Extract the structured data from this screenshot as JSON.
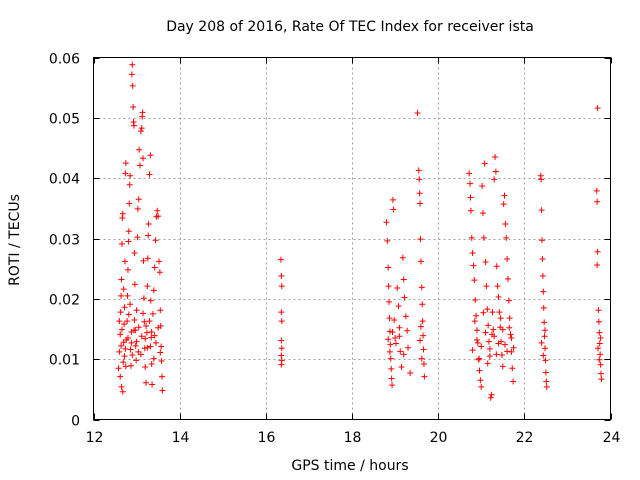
{
  "chart_data": {
    "type": "scatter",
    "title": "Day 208 of 2016, Rate Of TEC Index for receiver ista",
    "xlabel": "GPS time / hours",
    "ylabel": "ROTI / TECUs",
    "xlim": [
      12,
      24
    ],
    "ylim": [
      0,
      0.06
    ],
    "xticks": [
      12,
      14,
      16,
      18,
      20,
      22,
      24
    ],
    "xtick_labels": [
      "12",
      "14",
      "16",
      "18",
      "20",
      "22",
      "24"
    ],
    "yticks": [
      0,
      0.01,
      0.02,
      0.03,
      0.04,
      0.05,
      0.06
    ],
    "ytick_labels": [
      "0",
      "0.01",
      "0.02",
      "0.03",
      "0.04",
      "0.05",
      "0.06"
    ],
    "grid": true,
    "marker": "+",
    "series": [
      {
        "name": "ROTI",
        "color": "#ff0000",
        "points": [
          [
            12.58,
            0.0085
          ],
          [
            12.6,
            0.0112
          ],
          [
            12.62,
            0.0141
          ],
          [
            12.63,
            0.0178
          ],
          [
            12.64,
            0.0205
          ],
          [
            12.65,
            0.0232
          ],
          [
            12.66,
            0.0291
          ],
          [
            12.67,
            0.0334
          ],
          [
            12.68,
            0.0341
          ],
          [
            12.69,
            0.0095
          ],
          [
            12.7,
            0.0128
          ],
          [
            12.71,
            0.0158
          ],
          [
            12.72,
            0.0186
          ],
          [
            12.73,
            0.0262
          ],
          [
            12.74,
            0.0408
          ],
          [
            12.75,
            0.0425
          ],
          [
            12.62,
            0.0071
          ],
          [
            12.65,
            0.0054
          ],
          [
            12.68,
            0.0046
          ],
          [
            12.72,
            0.0105
          ],
          [
            12.76,
            0.0132
          ],
          [
            12.78,
            0.0163
          ],
          [
            12.79,
            0.0205
          ],
          [
            12.8,
            0.0248
          ],
          [
            12.81,
            0.0295
          ],
          [
            12.82,
            0.0312
          ],
          [
            12.83,
            0.0358
          ],
          [
            12.84,
            0.0389
          ],
          [
            12.85,
            0.0404
          ],
          [
            12.86,
            0.0116
          ],
          [
            12.87,
            0.0089
          ],
          [
            12.88,
            0.0145
          ],
          [
            12.89,
            0.0572
          ],
          [
            12.9,
            0.0588
          ],
          [
            12.91,
            0.0553
          ],
          [
            12.92,
            0.0518
          ],
          [
            12.93,
            0.0493
          ],
          [
            12.94,
            0.0487
          ],
          [
            12.95,
            0.0276
          ],
          [
            12.96,
            0.0224
          ],
          [
            12.97,
            0.0148
          ],
          [
            12.98,
            0.0122
          ],
          [
            12.99,
            0.0098
          ],
          [
            13.0,
            0.0181
          ],
          [
            13.02,
            0.0302
          ],
          [
            13.03,
            0.0349
          ],
          [
            13.05,
            0.0365
          ],
          [
            13.06,
            0.0447
          ],
          [
            13.08,
            0.0421
          ],
          [
            13.1,
            0.0478
          ],
          [
            13.12,
            0.0483
          ],
          [
            13.13,
            0.0502
          ],
          [
            13.14,
            0.0509
          ],
          [
            13.15,
            0.0433
          ],
          [
            13.16,
            0.0263
          ],
          [
            13.17,
            0.0201
          ],
          [
            13.18,
            0.0162
          ],
          [
            13.19,
            0.0118
          ],
          [
            13.2,
            0.0087
          ],
          [
            13.22,
            0.0061
          ],
          [
            13.24,
            0.0144
          ],
          [
            13.25,
            0.0221
          ],
          [
            13.26,
            0.0267
          ],
          [
            13.27,
            0.0305
          ],
          [
            13.28,
            0.0324
          ],
          [
            13.3,
            0.0406
          ],
          [
            13.32,
            0.0438
          ],
          [
            13.33,
            0.0197
          ],
          [
            13.34,
            0.0136
          ],
          [
            13.35,
            0.0092
          ],
          [
            13.36,
            0.0058
          ],
          [
            13.38,
            0.0175
          ],
          [
            13.4,
            0.0214
          ],
          [
            13.42,
            0.0252
          ],
          [
            13.44,
            0.0297
          ],
          [
            13.46,
            0.0336
          ],
          [
            13.48,
            0.0346
          ],
          [
            13.5,
            0.0337
          ],
          [
            13.52,
            0.0262
          ],
          [
            13.54,
            0.0244
          ],
          [
            13.55,
            0.0181
          ],
          [
            13.56,
            0.0155
          ],
          [
            13.57,
            0.0121
          ],
          [
            13.58,
            0.0097
          ],
          [
            13.59,
            0.0071
          ],
          [
            13.6,
            0.0048
          ],
          [
            12.6,
            0.0163
          ],
          [
            12.64,
            0.0122
          ],
          [
            12.7,
            0.0216
          ],
          [
            12.75,
            0.0088
          ],
          [
            12.8,
            0.0135
          ],
          [
            12.85,
            0.0191
          ],
          [
            12.9,
            0.0107
          ],
          [
            12.95,
            0.0165
          ],
          [
            13.0,
            0.0129
          ],
          [
            13.05,
            0.0153
          ],
          [
            13.1,
            0.0108
          ],
          [
            13.15,
            0.0176
          ],
          [
            13.2,
            0.0134
          ],
          [
            13.25,
            0.0119
          ],
          [
            13.3,
            0.0163
          ],
          [
            13.35,
            0.0145
          ],
          [
            13.4,
            0.0101
          ],
          [
            13.45,
            0.0127
          ],
          [
            13.5,
            0.0152
          ],
          [
            13.55,
            0.0111
          ],
          [
            12.66,
            0.0149
          ],
          [
            12.74,
            0.0117
          ],
          [
            12.82,
            0.0174
          ],
          [
            12.88,
            0.0127
          ],
          [
            12.94,
            0.0148
          ],
          [
            13.04,
            0.0112
          ],
          [
            13.12,
            0.0138
          ],
          [
            13.22,
            0.0155
          ],
          [
            13.32,
            0.0121
          ],
          [
            13.42,
            0.0139
          ],
          [
            16.35,
            0.0265
          ],
          [
            16.36,
            0.0238
          ],
          [
            16.37,
            0.0221
          ],
          [
            16.36,
            0.0178
          ],
          [
            16.37,
            0.0163
          ],
          [
            16.36,
            0.0131
          ],
          [
            16.37,
            0.0118
          ],
          [
            16.36,
            0.0106
          ],
          [
            16.37,
            0.0098
          ],
          [
            16.36,
            0.0091
          ],
          [
            18.8,
            0.0327
          ],
          [
            18.82,
            0.0296
          ],
          [
            18.84,
            0.0252
          ],
          [
            18.85,
            0.0221
          ],
          [
            18.86,
            0.0195
          ],
          [
            18.87,
            0.0168
          ],
          [
            18.88,
            0.0146
          ],
          [
            18.89,
            0.0124
          ],
          [
            18.9,
            0.0101
          ],
          [
            18.91,
            0.0084
          ],
          [
            18.92,
            0.0068
          ],
          [
            18.93,
            0.0057
          ],
          [
            18.95,
            0.0364
          ],
          [
            18.96,
            0.0348
          ],
          [
            18.98,
            0.0165
          ],
          [
            19.0,
            0.0135
          ],
          [
            19.05,
            0.0218
          ],
          [
            19.08,
            0.0188
          ],
          [
            19.1,
            0.0152
          ],
          [
            19.12,
            0.0113
          ],
          [
            19.15,
            0.0087
          ],
          [
            19.18,
            0.0268
          ],
          [
            19.2,
            0.0232
          ],
          [
            19.22,
            0.0202
          ],
          [
            19.25,
            0.0171
          ],
          [
            19.28,
            0.0147
          ],
          [
            19.3,
            0.0119
          ],
          [
            19.35,
            0.0077
          ],
          [
            18.84,
            0.0133
          ],
          [
            18.88,
            0.0112
          ],
          [
            18.94,
            0.0145
          ],
          [
            19.02,
            0.0126
          ],
          [
            19.1,
            0.0138
          ],
          [
            19.2,
            0.0108
          ],
          [
            19.52,
            0.0508
          ],
          [
            19.55,
            0.0413
          ],
          [
            19.56,
            0.0398
          ],
          [
            19.57,
            0.0375
          ],
          [
            19.58,
            0.0358
          ],
          [
            19.59,
            0.0299
          ],
          [
            19.6,
            0.0262
          ],
          [
            19.62,
            0.0219
          ],
          [
            19.63,
            0.0191
          ],
          [
            19.64,
            0.0163
          ],
          [
            19.65,
            0.0139
          ],
          [
            19.66,
            0.0116
          ],
          [
            19.67,
            0.0092
          ],
          [
            19.68,
            0.0071
          ],
          [
            19.62,
            0.0101
          ],
          [
            19.58,
            0.0131
          ],
          [
            19.6,
            0.0154
          ],
          [
            20.72,
            0.0408
          ],
          [
            20.74,
            0.0391
          ],
          [
            20.75,
            0.0368
          ],
          [
            20.76,
            0.0346
          ],
          [
            20.78,
            0.0301
          ],
          [
            20.8,
            0.0276
          ],
          [
            20.82,
            0.0255
          ],
          [
            20.84,
            0.0231
          ],
          [
            20.86,
            0.0198
          ],
          [
            20.88,
            0.0172
          ],
          [
            20.9,
            0.0148
          ],
          [
            20.92,
            0.0127
          ],
          [
            20.94,
            0.0099
          ],
          [
            20.96,
            0.0081
          ],
          [
            20.98,
            0.0065
          ],
          [
            21.0,
            0.0054
          ],
          [
            21.02,
            0.0387
          ],
          [
            21.04,
            0.0342
          ],
          [
            21.06,
            0.0301
          ],
          [
            21.08,
            0.0424
          ],
          [
            21.1,
            0.0261
          ],
          [
            21.12,
            0.0221
          ],
          [
            21.14,
            0.0183
          ],
          [
            21.16,
            0.0156
          ],
          [
            21.18,
            0.0129
          ],
          [
            21.2,
            0.0105
          ],
          [
            21.22,
            0.0036
          ],
          [
            21.24,
            0.0041
          ],
          [
            21.26,
            0.0178
          ],
          [
            21.28,
            0.0149
          ],
          [
            21.3,
            0.0398
          ],
          [
            21.32,
            0.0435
          ],
          [
            21.34,
            0.0411
          ],
          [
            21.36,
            0.0254
          ],
          [
            21.38,
            0.0221
          ],
          [
            21.4,
            0.0203
          ],
          [
            21.42,
            0.0178
          ],
          [
            21.44,
            0.0153
          ],
          [
            21.46,
            0.0129
          ],
          [
            21.48,
            0.0107
          ],
          [
            21.5,
            0.0088
          ],
          [
            21.52,
            0.0357
          ],
          [
            21.54,
            0.0371
          ],
          [
            21.56,
            0.0324
          ],
          [
            21.58,
            0.0301
          ],
          [
            21.6,
            0.0266
          ],
          [
            21.62,
            0.0233
          ],
          [
            21.64,
            0.0197
          ],
          [
            21.66,
            0.0168
          ],
          [
            21.68,
            0.0141
          ],
          [
            21.7,
            0.0112
          ],
          [
            21.72,
            0.0085
          ],
          [
            21.74,
            0.0063
          ],
          [
            20.8,
            0.0115
          ],
          [
            20.9,
            0.0132
          ],
          [
            21.0,
            0.0121
          ],
          [
            21.1,
            0.0144
          ],
          [
            21.2,
            0.0117
          ],
          [
            21.3,
            0.0138
          ],
          [
            21.4,
            0.0126
          ],
          [
            21.5,
            0.0149
          ],
          [
            21.6,
            0.0113
          ],
          [
            21.7,
            0.0135
          ],
          [
            20.85,
            0.0163
          ],
          [
            20.95,
            0.0101
          ],
          [
            21.05,
            0.0177
          ],
          [
            21.15,
            0.0093
          ],
          [
            21.25,
            0.0141
          ],
          [
            21.35,
            0.0108
          ],
          [
            21.45,
            0.0168
          ],
          [
            21.55,
            0.0124
          ],
          [
            21.65,
            0.0152
          ],
          [
            21.75,
            0.0119
          ],
          [
            22.38,
            0.0404
          ],
          [
            22.39,
            0.0398
          ],
          [
            22.4,
            0.0347
          ],
          [
            22.41,
            0.0297
          ],
          [
            22.42,
            0.0266
          ],
          [
            22.43,
            0.0238
          ],
          [
            22.44,
            0.0212
          ],
          [
            22.45,
            0.0185
          ],
          [
            22.46,
            0.0161
          ],
          [
            22.47,
            0.0138
          ],
          [
            22.48,
            0.0118
          ],
          [
            22.49,
            0.0098
          ],
          [
            22.5,
            0.0078
          ],
          [
            22.51,
            0.0063
          ],
          [
            22.52,
            0.0054
          ],
          [
            22.4,
            0.0127
          ],
          [
            22.44,
            0.0106
          ],
          [
            22.48,
            0.0148
          ],
          [
            23.7,
            0.0516
          ],
          [
            23.68,
            0.0379
          ],
          [
            23.69,
            0.0361
          ],
          [
            23.7,
            0.0278
          ],
          [
            23.69,
            0.0256
          ],
          [
            23.72,
            0.0181
          ],
          [
            23.73,
            0.0162
          ],
          [
            23.74,
            0.0144
          ],
          [
            23.75,
            0.0126
          ],
          [
            23.76,
            0.0108
          ],
          [
            23.77,
            0.0091
          ],
          [
            23.78,
            0.0076
          ],
          [
            23.79,
            0.0067
          ],
          [
            23.71,
            0.0118
          ],
          [
            23.74,
            0.0099
          ],
          [
            23.77,
            0.0135
          ]
        ]
      }
    ]
  }
}
